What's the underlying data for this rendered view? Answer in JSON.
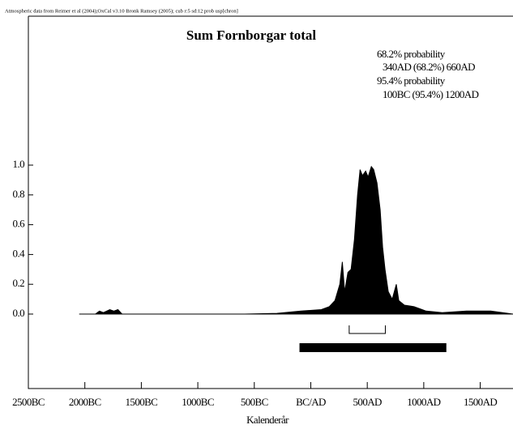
{
  "chart_data": {
    "type": "area",
    "header": "Atmospheric data from Reimer et al (2004);OxCal v3.10 Bronk Ramsey (2005); cub r:5 sd:12 prob usp[chron]",
    "title": "Sum Fornborgar total",
    "annotations": [
      "68.2% probability",
      "340AD (68.2%) 660AD",
      "95.4% probability",
      "100BC (95.4%) 1200AD"
    ],
    "xlabel": "Kalenderår",
    "x": [
      -2050,
      -1907,
      -1871,
      -1836,
      -1779,
      -1743,
      -1707,
      -1671,
      -586,
      -300,
      -86,
      93,
      164,
      214,
      257,
      279,
      300,
      329,
      357,
      386,
      414,
      436,
      457,
      486,
      507,
      536,
      557,
      586,
      614,
      636,
      657,
      686,
      721,
      757,
      779,
      829,
      914,
      1021,
      1164,
      1379,
      1593,
      1790
    ],
    "values": [
      0,
      0,
      0.02,
      0.01,
      0.03,
      0.02,
      0.03,
      0,
      0,
      0.005,
      0.02,
      0.03,
      0.05,
      0.09,
      0.2,
      0.35,
      0.15,
      0.28,
      0.3,
      0.5,
      0.8,
      0.97,
      0.93,
      0.96,
      0.92,
      0.99,
      0.97,
      0.88,
      0.7,
      0.45,
      0.3,
      0.15,
      0.1,
      0.2,
      0.09,
      0.06,
      0.05,
      0.02,
      0.01,
      0.02,
      0.02,
      0
    ],
    "color": "#000000",
    "intervals": [
      {
        "from": 340,
        "to": 660
      },
      {
        "from": -100,
        "to": 1200
      }
    ],
    "xlim": [
      -2500,
      1790
    ],
    "ylim": [
      -0.5,
      2.0
    ],
    "xticks": [
      {
        "value": -2500,
        "label": "2500BC"
      },
      {
        "value": -2000,
        "label": "2000BC"
      },
      {
        "value": -1500,
        "label": "1500BC"
      },
      {
        "value": -1000,
        "label": "1000BC"
      },
      {
        "value": -500,
        "label": "500BC"
      },
      {
        "value": 0,
        "label": "BC/AD"
      },
      {
        "value": 500,
        "label": "500AD"
      },
      {
        "value": 1000,
        "label": "1000AD"
      },
      {
        "value": 1500,
        "label": "1500AD"
      }
    ],
    "yticks": [
      {
        "value": 0,
        "label": "0.0"
      },
      0.2,
      0.4,
      0.6,
      0.8,
      {
        "value": 1,
        "label": "1.0"
      }
    ]
  }
}
